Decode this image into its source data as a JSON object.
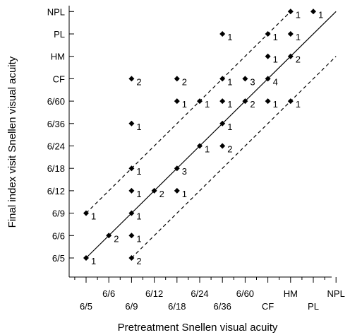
{
  "chart_data": {
    "type": "scatter",
    "xlabel": "Pretreatment Snellen visual acuity",
    "ylabel": "Final index visit Snellen visual acuity",
    "x_categories": [
      "6/5",
      "6/6",
      "6/9",
      "6/12",
      "6/18",
      "6/24",
      "6/36",
      "6/60",
      "CF",
      "HM",
      "PL",
      "NPL"
    ],
    "y_categories": [
      "6/5",
      "6/6",
      "6/9",
      "6/12",
      "6/18",
      "6/24",
      "6/36",
      "6/60",
      "CF",
      "HM",
      "PL",
      "NPL"
    ],
    "grid": false,
    "legend": "none",
    "reference_lines": [
      {
        "style": "solid",
        "meaning": "no change",
        "from": [
          "6/5",
          "6/5"
        ],
        "to": [
          "NPL",
          "NPL"
        ]
      },
      {
        "style": "dashed",
        "meaning": "upper band",
        "from": [
          "6/5",
          "6/9"
        ],
        "to": [
          "HM",
          "NPL"
        ]
      },
      {
        "style": "dashed",
        "meaning": "lower band",
        "from": [
          "6/9",
          "6/5"
        ],
        "to": [
          "NPL",
          "HM"
        ]
      }
    ],
    "points": [
      {
        "x": "6/5",
        "y": "6/5",
        "count": 1
      },
      {
        "x": "6/5",
        "y": "6/9",
        "count": 1
      },
      {
        "x": "6/6",
        "y": "6/6",
        "count": 2
      },
      {
        "x": "6/9",
        "y": "6/5",
        "count": 2
      },
      {
        "x": "6/9",
        "y": "6/6",
        "count": 1
      },
      {
        "x": "6/9",
        "y": "6/9",
        "count": 1
      },
      {
        "x": "6/9",
        "y": "6/12",
        "count": 1
      },
      {
        "x": "6/9",
        "y": "6/18",
        "count": 1
      },
      {
        "x": "6/9",
        "y": "6/36",
        "count": 1
      },
      {
        "x": "6/9",
        "y": "CF",
        "count": 2
      },
      {
        "x": "6/12",
        "y": "6/12",
        "count": 2
      },
      {
        "x": "6/18",
        "y": "6/12",
        "count": 1
      },
      {
        "x": "6/18",
        "y": "6/18",
        "count": 3
      },
      {
        "x": "6/18",
        "y": "6/60",
        "count": 1
      },
      {
        "x": "6/18",
        "y": "CF",
        "count": 2
      },
      {
        "x": "6/24",
        "y": "6/24",
        "count": 1
      },
      {
        "x": "6/24",
        "y": "6/60",
        "count": 1
      },
      {
        "x": "6/36",
        "y": "6/24",
        "count": 2
      },
      {
        "x": "6/36",
        "y": "6/36",
        "count": 1
      },
      {
        "x": "6/36",
        "y": "6/60",
        "count": 1
      },
      {
        "x": "6/36",
        "y": "CF",
        "count": 1
      },
      {
        "x": "6/36",
        "y": "PL",
        "count": 1
      },
      {
        "x": "6/60",
        "y": "6/60",
        "count": 2
      },
      {
        "x": "6/60",
        "y": "CF",
        "count": 3
      },
      {
        "x": "CF",
        "y": "6/60",
        "count": 1
      },
      {
        "x": "CF",
        "y": "CF",
        "count": 4
      },
      {
        "x": "CF",
        "y": "HM",
        "count": 1
      },
      {
        "x": "CF",
        "y": "PL",
        "count": 1
      },
      {
        "x": "HM",
        "y": "6/60",
        "count": 1
      },
      {
        "x": "HM",
        "y": "HM",
        "count": 2
      },
      {
        "x": "HM",
        "y": "PL",
        "count": 1
      },
      {
        "x": "HM",
        "y": "NPL",
        "count": 1
      },
      {
        "x": "PL",
        "y": "NPL",
        "count": 1
      }
    ]
  }
}
